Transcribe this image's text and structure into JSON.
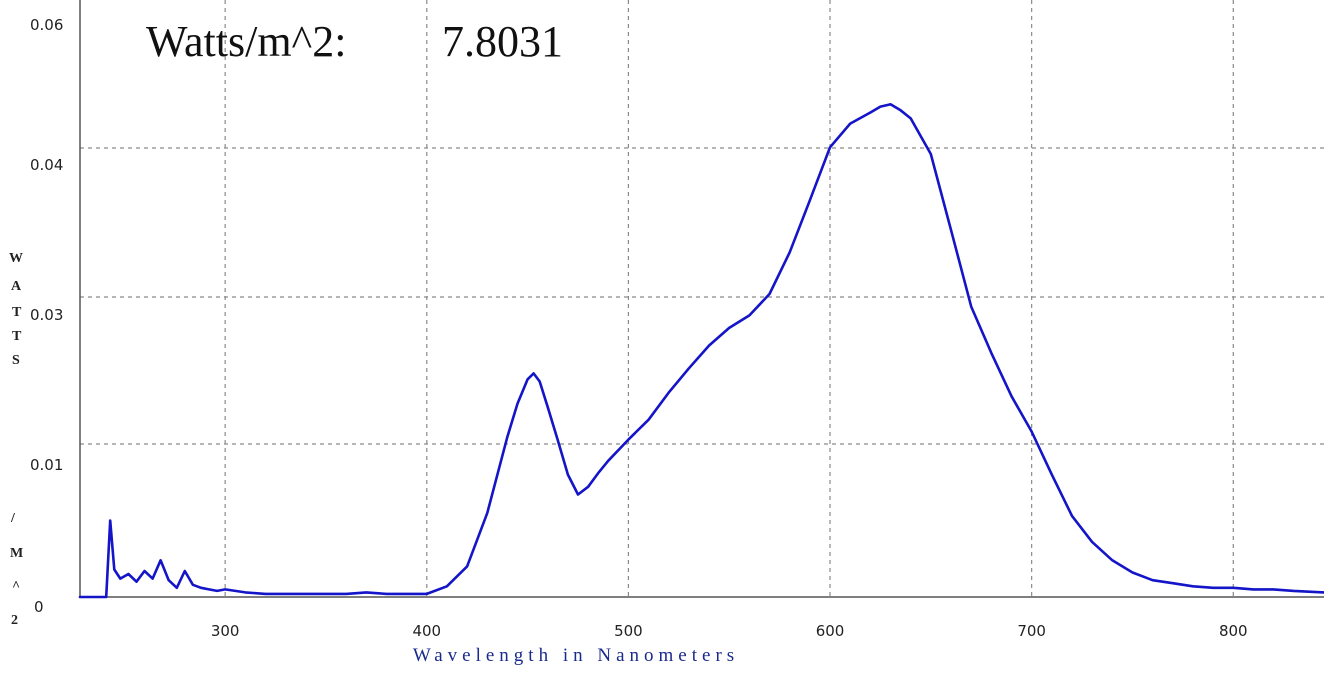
{
  "chart_data": {
    "type": "line",
    "readout": {
      "label": "Watts/m^2:",
      "value": "7.8031"
    },
    "xlabel": "Wavelength in Nanometers",
    "ylabel_letters": [
      "W",
      "A",
      "T",
      "T",
      "S",
      "/",
      "M",
      "^",
      "2"
    ],
    "xlim": [
      228,
      845
    ],
    "ylim": [
      0,
      0.06
    ],
    "x_ticks": [
      300,
      400,
      500,
      600,
      700,
      800
    ],
    "x_tick_labels": [
      "300",
      "400",
      "500",
      "600",
      "700",
      "800"
    ],
    "y_ticks": [
      0,
      0.01,
      0.03,
      0.04,
      0.06
    ],
    "y_tick_labels": [
      "0",
      "0.01",
      "0.03",
      "0.04",
      "0.06"
    ],
    "grid": true,
    "series_color": "#1414c8",
    "series": [
      {
        "x": [
          228,
          237,
          241,
          243,
          245,
          248,
          252,
          256,
          260,
          264,
          268,
          272,
          276,
          280,
          284,
          288,
          292,
          296,
          300,
          310,
          320,
          330,
          340,
          350,
          360,
          370,
          380,
          390,
          400,
          410,
          420,
          430,
          440,
          445,
          450,
          453,
          456,
          460,
          465,
          470,
          475,
          480,
          485,
          490,
          500,
          510,
          520,
          530,
          540,
          550,
          560,
          570,
          580,
          590,
          600,
          610,
          620,
          625,
          630,
          635,
          640,
          650,
          660,
          670,
          680,
          690,
          700,
          710,
          720,
          730,
          740,
          750,
          760,
          770,
          780,
          790,
          800,
          810,
          820,
          830,
          845
        ],
        "y": [
          0.0,
          0.0,
          0.0,
          0.005,
          0.0018,
          0.0012,
          0.0015,
          0.001,
          0.0017,
          0.0012,
          0.0024,
          0.0011,
          0.0006,
          0.0017,
          0.0008,
          0.0006,
          0.0005,
          0.0004,
          0.0005,
          0.0003,
          0.0002,
          0.0002,
          0.0002,
          0.0002,
          0.0002,
          0.0003,
          0.0002,
          0.0002,
          0.0002,
          0.0007,
          0.002,
          0.0055,
          0.011,
          0.0155,
          0.0188,
          0.0196,
          0.0185,
          0.015,
          0.0105,
          0.008,
          0.0067,
          0.0072,
          0.0081,
          0.0089,
          0.0106,
          0.0133,
          0.017,
          0.0203,
          0.0234,
          0.0258,
          0.0275,
          0.0302,
          0.033,
          0.0365,
          0.0401,
          0.0433,
          0.0448,
          0.0456,
          0.0459,
          0.0451,
          0.044,
          0.0396,
          0.0345,
          0.0287,
          0.0224,
          0.0165,
          0.0117,
          0.008,
          0.0053,
          0.0036,
          0.0024,
          0.0016,
          0.0011,
          0.0009,
          0.0007,
          0.0006,
          0.0006,
          0.0005,
          0.0005,
          0.0004,
          0.0003
        ]
      }
    ]
  }
}
